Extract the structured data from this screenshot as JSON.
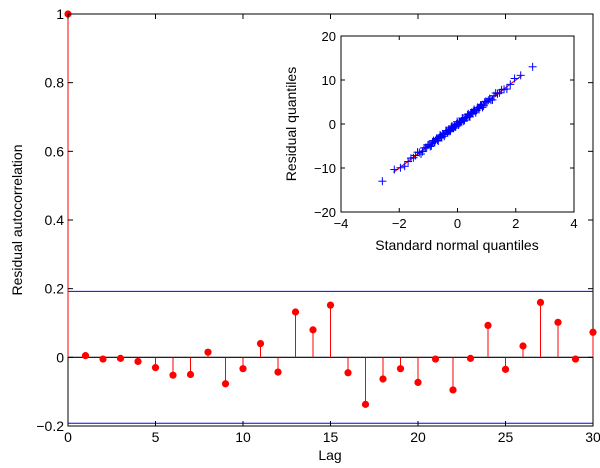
{
  "chart_data": [
    {
      "type": "stem",
      "xlabel": "Lag",
      "ylabel": "Residual autocorrelation",
      "xlim": [
        0,
        30
      ],
      "ylim": [
        -0.2,
        1
      ],
      "xticks": [
        "0",
        "5",
        "10",
        "15",
        "20",
        "25",
        "30"
      ],
      "yticks": [
        "−0.2",
        "0",
        "0.2",
        "0.4",
        "0.6",
        "0.8",
        "1"
      ],
      "x": [
        0,
        1,
        2,
        3,
        4,
        5,
        6,
        7,
        8,
        9,
        10,
        11,
        12,
        13,
        14,
        15,
        16,
        17,
        18,
        19,
        20,
        21,
        22,
        23,
        24,
        25,
        26,
        27,
        28,
        29,
        30
      ],
      "values": [
        1,
        0.005,
        -0.005,
        -0.003,
        -0.012,
        -0.03,
        -0.052,
        -0.05,
        0.015,
        -0.077,
        -0.033,
        0.04,
        -0.043,
        0.132,
        0.08,
        0.152,
        -0.045,
        -0.137,
        -0.063,
        -0.033,
        -0.073,
        -0.005,
        -0.095,
        -0.003,
        0.093,
        -0.035,
        0.033,
        0.16,
        0.102,
        -0.005,
        0.073
      ],
      "confidence_bounds": [
        0.192,
        -0.192
      ],
      "marker_color": "#ff0000",
      "bound_color": "#0000ff",
      "grid": false
    },
    {
      "type": "qq-plot",
      "xlabel": "Standard normal quantiles",
      "ylabel": "Residual quantiles",
      "xlim": [
        -4,
        4
      ],
      "ylim": [
        -20,
        20
      ],
      "xticks": [
        "−4",
        "−2",
        "0",
        "2",
        "4"
      ],
      "yticks": [
        "−20",
        "−10",
        "0",
        "10",
        "20"
      ],
      "reference_line": {
        "x": [
          -2.2,
          2.2
        ],
        "y": [
          -11,
          11
        ],
        "color": "#ff0000"
      },
      "points": {
        "n": 100,
        "scale": 5,
        "tail_low": [
          -2.58,
          -13
        ],
        "tail_high": [
          2.58,
          13
        ],
        "marker": "+",
        "color": "#0000ff"
      },
      "grid": false
    }
  ]
}
